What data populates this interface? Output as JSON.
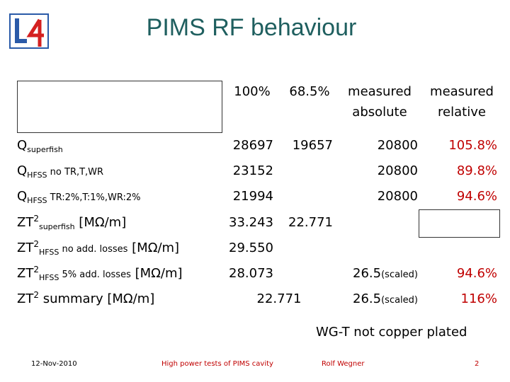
{
  "title": "PIMS RF behaviour",
  "logo_text": "L4",
  "headers": {
    "col1": "100%",
    "col2": "68.5%",
    "col3_line1": "measured",
    "col3_line2": "absolute",
    "col4_line1": "measured",
    "col4_line2": "relative"
  },
  "rows": [
    {
      "label_main": "Q",
      "label_sub": "superfish",
      "label_rest": "",
      "v1": "28697",
      "v2": "19657",
      "v3": "20800",
      "v4": "105.8%"
    },
    {
      "label_main": "Q",
      "label_sub": "HFSS",
      "label_rest": " no TR,T,WR",
      "v1": "23152",
      "v2": "",
      "v3": "20800",
      "v4": "89.8%"
    },
    {
      "label_main": "Q",
      "label_sub": "HFSS",
      "label_rest": " TR:2%,T:1%,WR:2%",
      "v1": "21994",
      "v2": "",
      "v3": "20800",
      "v4": "94.6%"
    },
    {
      "label_main": "ZT",
      "label_sup": "2",
      "label_sub": "superfish",
      "label_rest": "  [MΩ/m]",
      "v1": "33.243",
      "v2": "22.771",
      "v3": "",
      "v4": ""
    },
    {
      "label_main": "ZT",
      "label_sup": "2",
      "label_sub": "HFSS",
      "label_small": " no add. losses",
      "label_rest": " [MΩ/m]",
      "v1": "29.550",
      "v2": "",
      "v3": "",
      "v4": ""
    },
    {
      "label_main": "ZT",
      "label_sup": "2",
      "label_sub": "HFSS",
      "label_small": " 5% add. losses",
      "label_rest": " [MΩ/m]",
      "v1": "28.073",
      "v2": "",
      "v3": "26.5",
      "v3_note": "(scaled)",
      "v4": "94.6%"
    },
    {
      "label_main": "ZT",
      "label_sup": "2",
      "label_rest": " summary  [MΩ/m]",
      "v12": "22.771",
      "v3": "26.5",
      "v3_note": "(scaled)",
      "v4": "116%"
    }
  ],
  "note": "WG-T not copper plated",
  "footer": {
    "date": "12-Nov-2010",
    "subject": "High power tests of PIMS cavity",
    "author": "Rolf Wegner",
    "page": "2"
  },
  "colors": {
    "title": "#1f5f5f",
    "relative": "#c00000",
    "logo_blue": "#2a5aa8",
    "logo_red": "#d42020"
  }
}
